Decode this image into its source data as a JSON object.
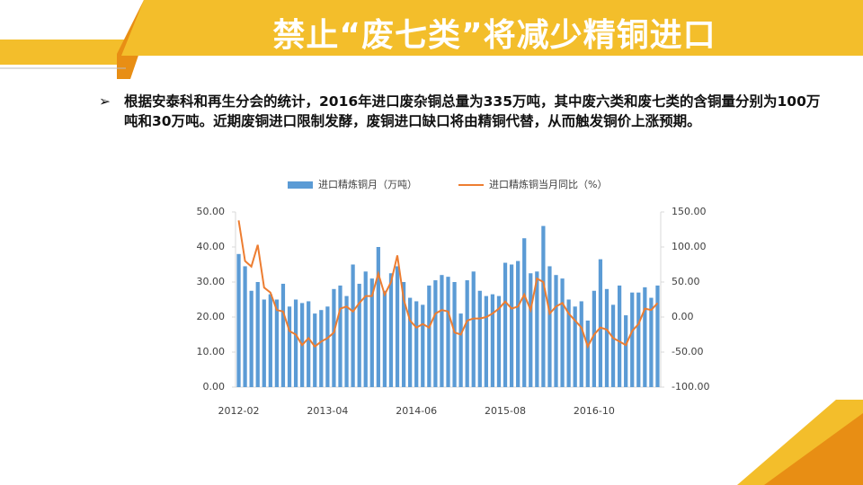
{
  "title": "禁止“废七类”将减少精铜进口",
  "bullet": "根据安泰科和再生分会的统计，2016年进口废杂铜总量为335万吨，其中废六类和废七类的含铜量分别为100万吨和30万吨。近期废铜进口限制发酵，废铜进口缺口将由精铜代替，从而触发铜价上涨预期。",
  "chart_data": {
    "type": "bar-line",
    "categories": [
      "2012-02",
      null,
      null,
      null,
      null,
      null,
      null,
      null,
      null,
      null,
      null,
      null,
      null,
      null,
      "2013-04",
      null,
      null,
      null,
      null,
      null,
      null,
      null,
      null,
      null,
      null,
      null,
      null,
      null,
      "2014-06",
      null,
      null,
      null,
      null,
      null,
      null,
      null,
      null,
      null,
      null,
      null,
      null,
      null,
      "2015-08",
      null,
      null,
      null,
      null,
      null,
      null,
      null,
      null,
      null,
      null,
      null,
      null,
      null,
      "2016-10",
      null,
      null,
      null,
      null,
      null,
      null,
      null,
      null,
      null,
      null
    ],
    "series": [
      {
        "name": "进口精炼铜月（万吨）",
        "type": "bar",
        "color": "#5b9bd5",
        "values": [
          38,
          34.5,
          27.5,
          30,
          25,
          26.5,
          25,
          29.5,
          23,
          25,
          24,
          24.5,
          21,
          22,
          23,
          28,
          29,
          26,
          35,
          29.5,
          33,
          31,
          40,
          27.5,
          32.5,
          34.5,
          30,
          25.5,
          24.5,
          23.5,
          29,
          30.5,
          32,
          31.5,
          30,
          21,
          30.5,
          33,
          27.5,
          26,
          26.5,
          26,
          35.5,
          35,
          36,
          42.5,
          32.5,
          33,
          46,
          34.5,
          32,
          31,
          25,
          23,
          24.5,
          19,
          27.5,
          36.5,
          28,
          23.5,
          29,
          20.5,
          27,
          27,
          28.5,
          25.5,
          29
        ]
      },
      {
        "name": "进口精炼铜当月同比（%）",
        "type": "line",
        "axis": "y2",
        "color": "#ed7d31",
        "values": [
          138,
          80,
          72,
          103,
          42,
          35,
          10,
          8,
          -20,
          -25,
          -40,
          -30,
          -42,
          -35,
          -30,
          -22,
          12,
          15,
          8,
          20,
          30,
          30,
          62,
          32,
          50,
          88,
          25,
          -5,
          -15,
          -10,
          -15,
          5,
          10,
          8,
          -22,
          -25,
          -5,
          -2,
          -2,
          0,
          5,
          12,
          22,
          12,
          15,
          32,
          10,
          55,
          50,
          5,
          15,
          20,
          5,
          -5,
          -15,
          -42,
          -25,
          -15,
          -18,
          -30,
          -35,
          -40,
          -20,
          -10,
          12,
          10,
          20
        ]
      }
    ],
    "ylim": [
      0,
      50
    ],
    "yticks": [
      {
        "value": 0,
        "label": "0.00"
      },
      {
        "value": 10,
        "label": "10.00"
      },
      {
        "value": 20,
        "label": "20.00"
      },
      {
        "value": 30,
        "label": "30.00"
      },
      {
        "value": 40,
        "label": "40.00"
      },
      {
        "value": 50,
        "label": "50.00"
      }
    ],
    "y2lim": [
      -100,
      150
    ],
    "y2ticks": [
      {
        "value": -100,
        "label": "-100.00"
      },
      {
        "value": -50,
        "label": "-50.00"
      },
      {
        "value": 0,
        "label": "0.00"
      },
      {
        "value": 50,
        "label": "50.00"
      },
      {
        "value": 100,
        "label": "100.00"
      },
      {
        "value": 150,
        "label": "150.00"
      }
    ],
    "grid": false,
    "legend": "top"
  }
}
